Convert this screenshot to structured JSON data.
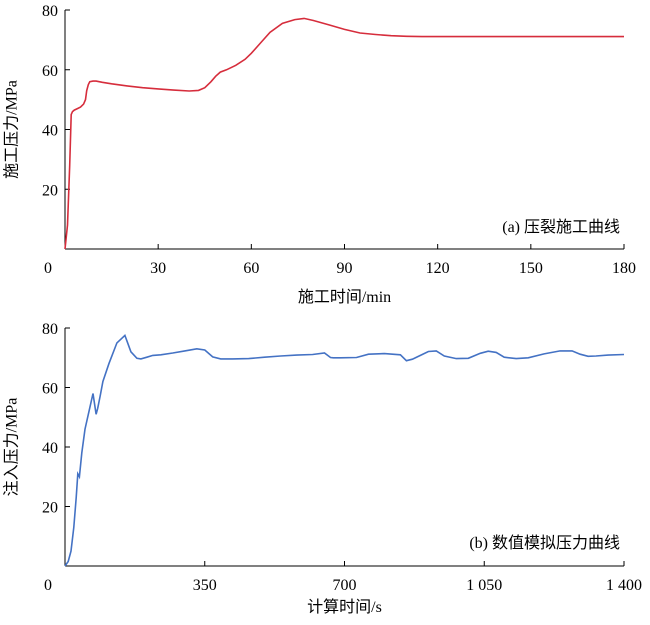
{
  "chart_data": [
    {
      "type": "line",
      "title": "",
      "annotation": "(a) 压裂施工曲线",
      "xlabel": "施工时间/min",
      "ylabel": "施工压力/MPa",
      "xlim": [
        0,
        180
      ],
      "ylim": [
        0,
        80
      ],
      "xticks": [
        0,
        30,
        60,
        90,
        120,
        150,
        180
      ],
      "xtick_labels": [
        "0",
        "30",
        "60",
        "90",
        "120",
        "150",
        "180"
      ],
      "yticks": [
        20,
        40,
        60,
        80
      ],
      "ytick_labels": [
        "20",
        "40",
        "60",
        "80"
      ],
      "grid": false,
      "color": "#d62d3c",
      "series": [
        {
          "x": [
            0,
            0.8,
            1.5,
            2,
            2.4,
            3,
            4,
            5,
            6,
            6.6,
            7,
            7.5,
            8,
            9,
            10,
            12,
            15,
            20,
            25,
            30,
            35,
            40,
            43,
            45,
            47,
            48.5,
            50,
            52,
            55,
            58,
            60,
            63,
            66,
            70,
            74,
            77,
            80,
            85,
            90,
            95,
            100,
            105,
            110,
            115,
            120,
            130,
            140,
            150,
            160,
            170,
            180
          ],
          "y": [
            0,
            8,
            28,
            45,
            46,
            46.5,
            47,
            47.5,
            48.5,
            50,
            53,
            55,
            56,
            56.2,
            56.2,
            55.8,
            55.3,
            54.6,
            54,
            53.6,
            53.2,
            52.9,
            53.1,
            54,
            56,
            57.8,
            59.2,
            60,
            61.5,
            63.5,
            65.5,
            69,
            72.5,
            75.5,
            76.8,
            77.2,
            76.5,
            75,
            73.5,
            72.3,
            71.8,
            71.4,
            71.2,
            71.1,
            71.1,
            71.1,
            71.1,
            71.1,
            71.1,
            71.1,
            71.1
          ]
        }
      ]
    },
    {
      "type": "line",
      "title": "",
      "annotation": "(b) 数值模拟压力曲线",
      "xlabel": "计算时间/s",
      "ylabel": "注入压力/MPa",
      "xlim": [
        0,
        1400
      ],
      "ylim": [
        0,
        80
      ],
      "xticks": [
        0,
        350,
        700,
        1050,
        1400
      ],
      "xtick_labels": [
        "0",
        "350",
        "700",
        "1 050",
        "1 400"
      ],
      "yticks": [
        20,
        40,
        60,
        80
      ],
      "ytick_labels": [
        "20",
        "40",
        "60",
        "80"
      ],
      "grid": false,
      "color": "#4472c4",
      "series": [
        {
          "x": [
            0,
            8,
            15,
            22,
            28,
            32,
            36,
            42,
            50,
            60,
            70,
            78,
            82,
            88,
            95,
            110,
            130,
            150,
            165,
            172,
            180,
            190,
            205,
            220,
            240,
            270,
            300,
            330,
            350,
            370,
            390,
            420,
            460,
            500,
            540,
            580,
            620,
            650,
            665,
            672,
            690,
            730,
            760,
            800,
            840,
            855,
            870,
            890,
            910,
            930,
            950,
            980,
            1010,
            1040,
            1060,
            1080,
            1100,
            1130,
            1160,
            1200,
            1240,
            1270,
            1290,
            1310,
            1330,
            1360,
            1400
          ],
          "y": [
            0,
            1.5,
            5,
            13,
            23,
            31,
            30,
            38,
            46,
            52,
            58,
            51,
            53,
            57,
            62,
            68,
            75,
            77.5,
            72,
            71,
            69.8,
            69.6,
            70.2,
            70.8,
            71,
            71.6,
            72.3,
            73,
            72.6,
            70.3,
            69.6,
            69.6,
            69.7,
            70.2,
            70.6,
            70.9,
            71.1,
            71.6,
            70.1,
            70,
            70,
            70.1,
            71.2,
            71.4,
            71,
            69,
            69.5,
            70.8,
            72.1,
            72.3,
            70.6,
            69.7,
            69.8,
            71.5,
            72.2,
            71.8,
            70.2,
            69.7,
            70,
            71.3,
            72.3,
            72.3,
            71.2,
            70.5,
            70.6,
            70.9,
            71.1
          ]
        }
      ]
    }
  ]
}
